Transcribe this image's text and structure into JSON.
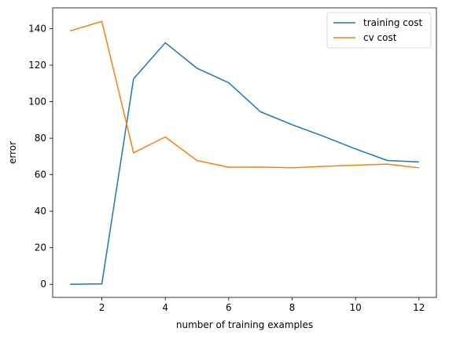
{
  "chart_data": {
    "type": "line",
    "xlabel": "number of training examples",
    "ylabel": "error",
    "xlim": [
      0.45,
      12.55
    ],
    "ylim": [
      -7.2,
      151.4
    ],
    "x_ticks": [
      2,
      4,
      6,
      8,
      10,
      12
    ],
    "y_ticks": [
      0,
      20,
      40,
      60,
      80,
      100,
      120,
      140
    ],
    "grid": false,
    "legend_position": "top-right",
    "x": [
      1,
      2,
      3,
      4,
      5,
      6,
      7,
      8,
      9,
      10,
      11,
      12
    ],
    "series": [
      {
        "name": "training cost",
        "color": "#1f77b4",
        "values": [
          0.0,
          0.2,
          112.5,
          132.3,
          118.3,
          110.4,
          94.5,
          87.4,
          81.0,
          74.1,
          67.8,
          67.0
        ]
      },
      {
        "name": "cv cost",
        "color": "#ff7f0e",
        "values": [
          138.8,
          144.0,
          72.0,
          80.7,
          67.8,
          64.1,
          64.2,
          63.8,
          64.6,
          65.2,
          65.8,
          63.8
        ]
      }
    ]
  }
}
